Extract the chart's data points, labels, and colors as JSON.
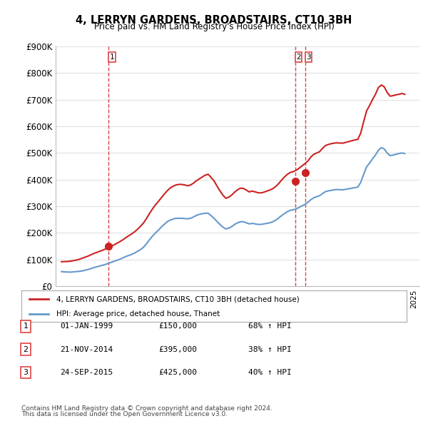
{
  "title": "4, LERRYN GARDENS, BROADSTAIRS, CT10 3BH",
  "subtitle": "Price paid vs. HM Land Registry's House Price Index (HPI)",
  "ylabel": "",
  "ylim": [
    0,
    900000
  ],
  "yticks": [
    0,
    100000,
    200000,
    300000,
    400000,
    500000,
    600000,
    700000,
    800000,
    900000
  ],
  "ytick_labels": [
    "£0",
    "£100K",
    "£200K",
    "£300K",
    "£400K",
    "£500K",
    "£600K",
    "£700K",
    "£800K",
    "£900K"
  ],
  "hpi_color": "#6699cc",
  "price_color": "#cc2222",
  "vline_color": "#dd4444",
  "marker_color": "#cc2222",
  "background_color": "#ffffff",
  "grid_color": "#e0e0e0",
  "legend_label_price": "4, LERRYN GARDENS, BROADSTAIRS, CT10 3BH (detached house)",
  "legend_label_hpi": "HPI: Average price, detached house, Thanet",
  "transactions": [
    {
      "num": 1,
      "date_label": "01-JAN-1999",
      "price_label": "£150,000",
      "pct_label": "68% ↑ HPI",
      "year": 1999.0,
      "price": 150000
    },
    {
      "num": 2,
      "date_label": "21-NOV-2014",
      "price_label": "£395,000",
      "pct_label": "38% ↑ HPI",
      "year": 2014.9,
      "price": 395000
    },
    {
      "num": 3,
      "date_label": "24-SEP-2015",
      "price_label": "£425,000",
      "pct_label": "40% ↑ HPI",
      "year": 2015.75,
      "price": 425000
    }
  ],
  "footnote1": "Contains HM Land Registry data © Crown copyright and database right 2024.",
  "footnote2": "This data is licensed under the Open Government Licence v3.0.",
  "hpi_data": {
    "years": [
      1995.0,
      1995.25,
      1995.5,
      1995.75,
      1996.0,
      1996.25,
      1996.5,
      1996.75,
      1997.0,
      1997.25,
      1997.5,
      1997.75,
      1998.0,
      1998.25,
      1998.5,
      1998.75,
      1999.0,
      1999.25,
      1999.5,
      1999.75,
      2000.0,
      2000.25,
      2000.5,
      2000.75,
      2001.0,
      2001.25,
      2001.5,
      2001.75,
      2002.0,
      2002.25,
      2002.5,
      2002.75,
      2003.0,
      2003.25,
      2003.5,
      2003.75,
      2004.0,
      2004.25,
      2004.5,
      2004.75,
      2005.0,
      2005.25,
      2005.5,
      2005.75,
      2006.0,
      2006.25,
      2006.5,
      2006.75,
      2007.0,
      2007.25,
      2007.5,
      2007.75,
      2008.0,
      2008.25,
      2008.5,
      2008.75,
      2009.0,
      2009.25,
      2009.5,
      2009.75,
      2010.0,
      2010.25,
      2010.5,
      2010.75,
      2011.0,
      2011.25,
      2011.5,
      2011.75,
      2012.0,
      2012.25,
      2012.5,
      2012.75,
      2013.0,
      2013.25,
      2013.5,
      2013.75,
      2014.0,
      2014.25,
      2014.5,
      2014.75,
      2015.0,
      2015.25,
      2015.5,
      2015.75,
      2016.0,
      2016.25,
      2016.5,
      2016.75,
      2017.0,
      2017.25,
      2017.5,
      2017.75,
      2018.0,
      2018.25,
      2018.5,
      2018.75,
      2019.0,
      2019.25,
      2019.5,
      2019.75,
      2020.0,
      2020.25,
      2020.5,
      2020.75,
      2021.0,
      2021.25,
      2021.5,
      2021.75,
      2022.0,
      2022.25,
      2022.5,
      2022.75,
      2023.0,
      2023.25,
      2023.5,
      2023.75,
      2024.0,
      2024.25
    ],
    "values": [
      55000,
      54000,
      53500,
      53000,
      54000,
      55000,
      56000,
      57500,
      60000,
      63000,
      66000,
      70000,
      73000,
      76000,
      79000,
      82000,
      86000,
      90000,
      94000,
      98000,
      102000,
      107000,
      112000,
      116000,
      120000,
      125000,
      132000,
      138000,
      147000,
      160000,
      175000,
      188000,
      200000,
      210000,
      222000,
      232000,
      242000,
      248000,
      252000,
      255000,
      255000,
      255000,
      254000,
      253000,
      255000,
      260000,
      266000,
      270000,
      272000,
      274000,
      274000,
      265000,
      255000,
      243000,
      232000,
      222000,
      215000,
      218000,
      224000,
      232000,
      238000,
      242000,
      242000,
      238000,
      234000,
      236000,
      234000,
      232000,
      232000,
      234000,
      236000,
      238000,
      242000,
      248000,
      256000,
      265000,
      273000,
      280000,
      285000,
      287000,
      290000,
      296000,
      302000,
      307000,
      315000,
      325000,
      332000,
      336000,
      340000,
      348000,
      355000,
      358000,
      360000,
      362000,
      363000,
      362000,
      362000,
      364000,
      366000,
      368000,
      370000,
      372000,
      390000,
      420000,
      448000,
      462000,
      478000,
      492000,
      510000,
      520000,
      515000,
      500000,
      490000,
      492000,
      495000,
      498000,
      500000,
      498000
    ]
  },
  "price_data": {
    "years": [
      1995.0,
      1995.25,
      1995.5,
      1995.75,
      1996.0,
      1996.25,
      1996.5,
      1996.75,
      1997.0,
      1997.25,
      1997.5,
      1997.75,
      1998.0,
      1998.25,
      1998.5,
      1998.75,
      1999.0,
      1999.25,
      1999.5,
      1999.75,
      2000.0,
      2000.25,
      2000.5,
      2000.75,
      2001.0,
      2001.25,
      2001.5,
      2001.75,
      2002.0,
      2002.25,
      2002.5,
      2002.75,
      2003.0,
      2003.25,
      2003.5,
      2003.75,
      2004.0,
      2004.25,
      2004.5,
      2004.75,
      2005.0,
      2005.25,
      2005.5,
      2005.75,
      2006.0,
      2006.25,
      2006.5,
      2006.75,
      2007.0,
      2007.25,
      2007.5,
      2007.75,
      2008.0,
      2008.25,
      2008.5,
      2008.75,
      2009.0,
      2009.25,
      2009.5,
      2009.75,
      2010.0,
      2010.25,
      2010.5,
      2010.75,
      2011.0,
      2011.25,
      2011.5,
      2011.75,
      2012.0,
      2012.25,
      2012.5,
      2012.75,
      2013.0,
      2013.25,
      2013.5,
      2013.75,
      2014.0,
      2014.25,
      2014.5,
      2014.75,
      2015.0,
      2015.25,
      2015.5,
      2015.75,
      2016.0,
      2016.25,
      2016.5,
      2016.75,
      2017.0,
      2017.25,
      2017.5,
      2017.75,
      2018.0,
      2018.25,
      2018.5,
      2018.75,
      2019.0,
      2019.25,
      2019.5,
      2019.75,
      2020.0,
      2020.25,
      2020.5,
      2020.75,
      2021.0,
      2021.25,
      2021.5,
      2021.75,
      2022.0,
      2022.25,
      2022.5,
      2022.75,
      2023.0,
      2023.25,
      2023.5,
      2023.75,
      2024.0,
      2024.25
    ],
    "values": [
      92000,
      92500,
      93000,
      94000,
      96000,
      98000,
      101000,
      105000,
      109000,
      113000,
      118000,
      123000,
      127000,
      131000,
      135000,
      140000,
      145000,
      150000,
      156000,
      162000,
      168000,
      175000,
      183000,
      190000,
      197000,
      205000,
      215000,
      226000,
      238000,
      255000,
      273000,
      290000,
      305000,
      318000,
      332000,
      345000,
      358000,
      368000,
      375000,
      380000,
      382000,
      382000,
      380000,
      377000,
      380000,
      387000,
      396000,
      403000,
      410000,
      417000,
      420000,
      408000,
      395000,
      376000,
      358000,
      342000,
      330000,
      334000,
      342000,
      353000,
      362000,
      368000,
      367000,
      361000,
      354000,
      357000,
      354000,
      351000,
      350000,
      353000,
      357000,
      361000,
      366000,
      374000,
      385000,
      398000,
      410000,
      420000,
      427000,
      430000,
      435000,
      443000,
      452000,
      460000,
      470000,
      485000,
      495000,
      500000,
      505000,
      518000,
      528000,
      532000,
      535000,
      537000,
      538000,
      537000,
      537000,
      540000,
      543000,
      546000,
      549000,
      551000,
      575000,
      618000,
      658000,
      678000,
      700000,
      720000,
      745000,
      755000,
      748000,
      727000,
      713000,
      715000,
      718000,
      720000,
      723000,
      720000
    ]
  }
}
